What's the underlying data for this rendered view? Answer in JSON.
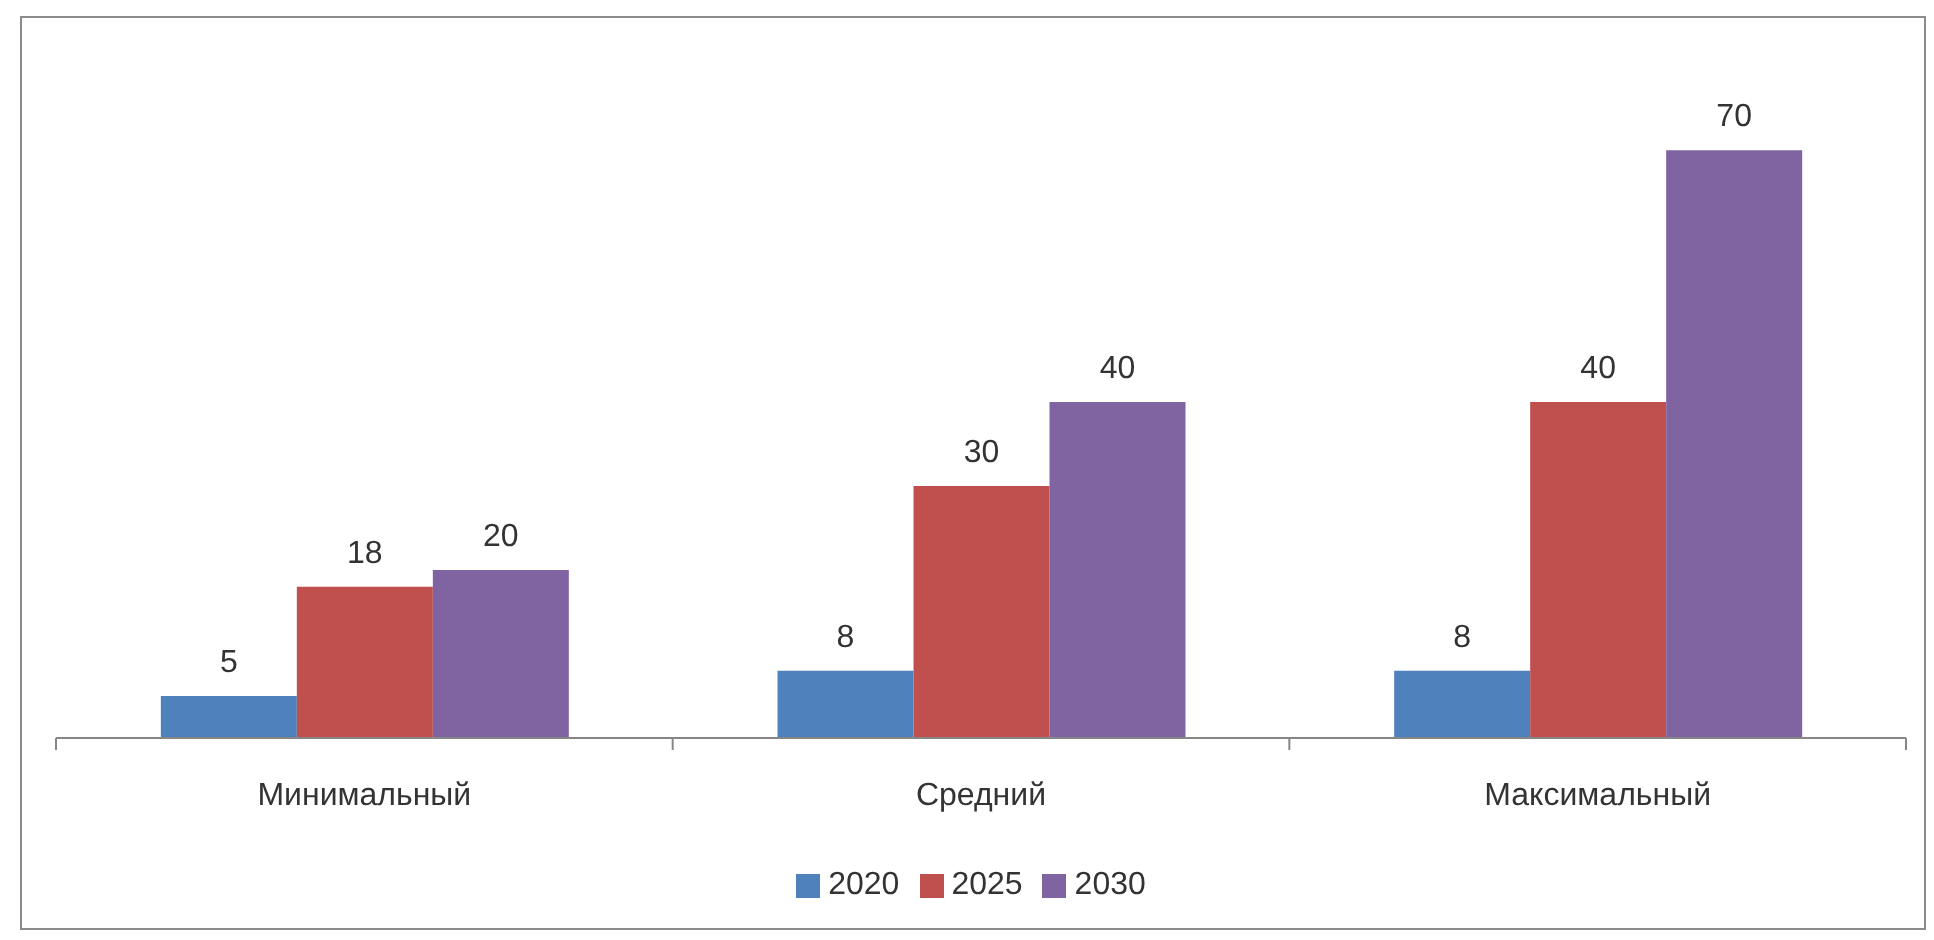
{
  "chart_data": {
    "type": "bar",
    "categories": [
      "Минимальный",
      "Средний",
      "Максимальный"
    ],
    "series": [
      {
        "name": "2020",
        "color": "#4f81bd",
        "values": [
          5,
          8,
          8
        ]
      },
      {
        "name": "2025",
        "color": "#c0504d",
        "values": [
          18,
          30,
          40
        ]
      },
      {
        "name": "2030",
        "color": "#8064a2",
        "values": [
          20,
          40,
          70
        ]
      }
    ],
    "data_labels": true,
    "legend": "bottom",
    "tick_labels": "x"
  }
}
